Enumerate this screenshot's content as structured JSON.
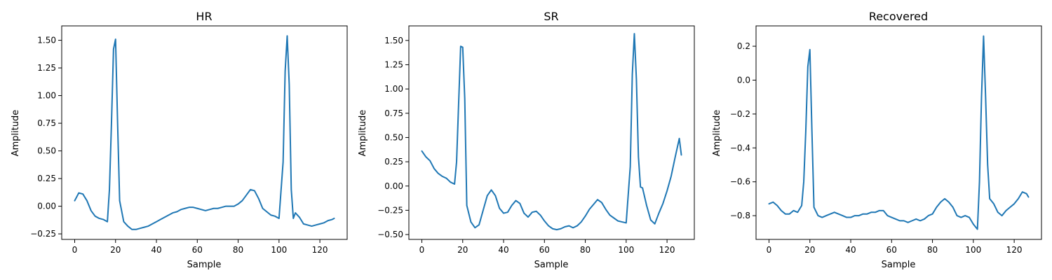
{
  "chart_data": [
    {
      "type": "line",
      "title": "HR",
      "xlabel": "Sample",
      "ylabel": "Amplitude",
      "xlim": [
        -6.35,
        133.35
      ],
      "ylim": [
        -0.3,
        1.63
      ],
      "xticks": [
        0,
        20,
        40,
        60,
        80,
        100,
        120
      ],
      "yticks": [
        -0.25,
        0.0,
        0.25,
        0.5,
        0.75,
        1.0,
        1.25,
        1.5
      ],
      "ytick_labels": [
        "−0.25",
        "0.00",
        "0.25",
        "0.50",
        "0.75",
        "1.00",
        "1.25",
        "1.50"
      ],
      "grid": false,
      "color": "#1f77b4",
      "x": [
        0,
        2,
        4,
        6,
        8,
        10,
        12,
        14,
        16,
        17,
        18,
        19,
        20,
        21,
        22,
        24,
        26,
        28,
        30,
        32,
        34,
        36,
        38,
        40,
        42,
        44,
        46,
        48,
        50,
        52,
        54,
        56,
        58,
        60,
        62,
        64,
        66,
        68,
        70,
        72,
        74,
        76,
        78,
        80,
        82,
        84,
        86,
        88,
        90,
        92,
        94,
        96,
        98,
        100,
        102,
        103,
        104,
        105,
        106,
        107,
        108,
        110,
        112,
        114,
        116,
        118,
        120,
        122,
        124,
        126,
        127
      ],
      "y": [
        0.05,
        0.12,
        0.11,
        0.05,
        -0.04,
        -0.09,
        -0.11,
        -0.12,
        -0.14,
        0.15,
        0.75,
        1.42,
        1.51,
        0.75,
        0.05,
        -0.14,
        -0.18,
        -0.21,
        -0.21,
        -0.2,
        -0.19,
        -0.18,
        -0.16,
        -0.14,
        -0.12,
        -0.1,
        -0.08,
        -0.06,
        -0.05,
        -0.03,
        -0.02,
        -0.01,
        -0.01,
        -0.02,
        -0.03,
        -0.04,
        -0.03,
        -0.02,
        -0.02,
        -0.01,
        0.0,
        0.0,
        0.0,
        0.02,
        0.05,
        0.1,
        0.15,
        0.14,
        0.07,
        -0.02,
        -0.05,
        -0.08,
        -0.09,
        -0.11,
        0.4,
        1.22,
        1.54,
        1.1,
        0.15,
        -0.11,
        -0.06,
        -0.1,
        -0.16,
        -0.17,
        -0.18,
        -0.17,
        -0.16,
        -0.15,
        -0.13,
        -0.12,
        -0.11
      ]
    },
    {
      "type": "line",
      "title": "SR",
      "xlabel": "Sample",
      "ylabel": "Amplitude",
      "xlim": [
        -6.35,
        133.35
      ],
      "ylim": [
        -0.55,
        1.65
      ],
      "xticks": [
        0,
        20,
        40,
        60,
        80,
        100,
        120
      ],
      "yticks": [
        -0.5,
        -0.25,
        0.0,
        0.25,
        0.5,
        0.75,
        1.0,
        1.25,
        1.5
      ],
      "ytick_labels": [
        "−0.50",
        "−0.25",
        "0.00",
        "0.25",
        "0.50",
        "0.75",
        "1.00",
        "1.25",
        "1.50"
      ],
      "grid": false,
      "color": "#1f77b4",
      "x": [
        0,
        2,
        4,
        6,
        8,
        10,
        12,
        14,
        16,
        17,
        18,
        19,
        20,
        21,
        22,
        24,
        26,
        28,
        30,
        32,
        34,
        36,
        38,
        40,
        42,
        44,
        46,
        48,
        50,
        52,
        54,
        56,
        58,
        60,
        62,
        64,
        66,
        68,
        70,
        72,
        74,
        76,
        78,
        80,
        82,
        84,
        86,
        88,
        90,
        92,
        94,
        96,
        98,
        100,
        102,
        103,
        104,
        105,
        106,
        107,
        108,
        110,
        112,
        114,
        116,
        118,
        120,
        122,
        124,
        126,
        127
      ],
      "y": [
        0.36,
        0.3,
        0.26,
        0.18,
        0.13,
        0.1,
        0.08,
        0.04,
        0.02,
        0.25,
        0.85,
        1.44,
        1.43,
        0.9,
        -0.2,
        -0.37,
        -0.43,
        -0.4,
        -0.25,
        -0.1,
        -0.04,
        -0.1,
        -0.23,
        -0.28,
        -0.27,
        -0.2,
        -0.15,
        -0.18,
        -0.28,
        -0.32,
        -0.27,
        -0.26,
        -0.3,
        -0.36,
        -0.41,
        -0.44,
        -0.45,
        -0.44,
        -0.42,
        -0.41,
        -0.43,
        -0.41,
        -0.37,
        -0.31,
        -0.24,
        -0.19,
        -0.14,
        -0.17,
        -0.24,
        -0.3,
        -0.33,
        -0.36,
        -0.37,
        -0.38,
        0.2,
        1.15,
        1.57,
        1.1,
        0.3,
        -0.01,
        -0.02,
        -0.2,
        -0.35,
        -0.39,
        -0.28,
        -0.18,
        -0.05,
        0.1,
        0.3,
        0.49,
        0.32
      ]
    },
    {
      "type": "line",
      "title": "Recovered",
      "xlabel": "Sample",
      "ylabel": "Amplitude",
      "xlim": [
        -6.35,
        133.35
      ],
      "ylim": [
        -0.94,
        0.32
      ],
      "xticks": [
        0,
        20,
        40,
        60,
        80,
        100,
        120
      ],
      "yticks": [
        -0.8,
        -0.6,
        -0.4,
        -0.2,
        0.0,
        0.2
      ],
      "ytick_labels": [
        "−0.8",
        "−0.6",
        "−0.4",
        "−0.2",
        "0.0",
        "0.2"
      ],
      "grid": false,
      "color": "#1f77b4",
      "x": [
        0,
        2,
        4,
        6,
        8,
        10,
        12,
        14,
        16,
        17,
        18,
        19,
        20,
        21,
        22,
        24,
        26,
        28,
        30,
        32,
        34,
        36,
        38,
        40,
        42,
        44,
        46,
        48,
        50,
        52,
        54,
        56,
        58,
        60,
        62,
        64,
        66,
        68,
        70,
        72,
        74,
        76,
        78,
        80,
        82,
        84,
        86,
        88,
        90,
        92,
        94,
        96,
        98,
        100,
        102,
        103,
        104,
        105,
        106,
        107,
        108,
        110,
        112,
        114,
        116,
        118,
        120,
        122,
        124,
        126,
        127
      ],
      "y": [
        -0.73,
        -0.72,
        -0.74,
        -0.77,
        -0.79,
        -0.79,
        -0.77,
        -0.78,
        -0.74,
        -0.6,
        -0.3,
        0.08,
        0.18,
        -0.3,
        -0.75,
        -0.8,
        -0.81,
        -0.8,
        -0.79,
        -0.78,
        -0.79,
        -0.8,
        -0.81,
        -0.81,
        -0.8,
        -0.8,
        -0.79,
        -0.79,
        -0.78,
        -0.78,
        -0.77,
        -0.77,
        -0.8,
        -0.81,
        -0.82,
        -0.83,
        -0.83,
        -0.84,
        -0.83,
        -0.82,
        -0.83,
        -0.82,
        -0.8,
        -0.79,
        -0.75,
        -0.72,
        -0.7,
        -0.72,
        -0.75,
        -0.8,
        -0.81,
        -0.8,
        -0.81,
        -0.85,
        -0.88,
        -0.6,
        -0.1,
        0.26,
        -0.1,
        -0.5,
        -0.7,
        -0.73,
        -0.78,
        -0.8,
        -0.77,
        -0.75,
        -0.73,
        -0.7,
        -0.66,
        -0.67,
        -0.69
      ]
    }
  ]
}
